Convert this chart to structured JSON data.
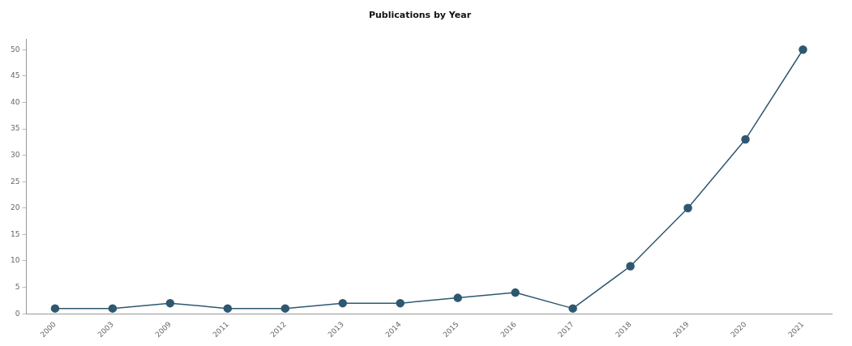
{
  "chart_data": {
    "type": "line",
    "title": "Publications by Year",
    "categories": [
      "2000",
      "2003",
      "2009",
      "2011",
      "2012",
      "2013",
      "2014",
      "2015",
      "2016",
      "2017",
      "2018",
      "2019",
      "2020",
      "2021"
    ],
    "series": [
      {
        "color": "#2e5870",
        "values": [
          1,
          1,
          2,
          1,
          1,
          2,
          2,
          3,
          4,
          1,
          9,
          20,
          33,
          50
        ]
      }
    ],
    "ylim": [
      0,
      52
    ],
    "yticks": [
      0,
      5,
      10,
      15,
      20,
      25,
      30,
      35,
      40,
      45,
      50
    ],
    "grid": false,
    "legend": false,
    "marker": "circle",
    "line_style": "solid"
  }
}
